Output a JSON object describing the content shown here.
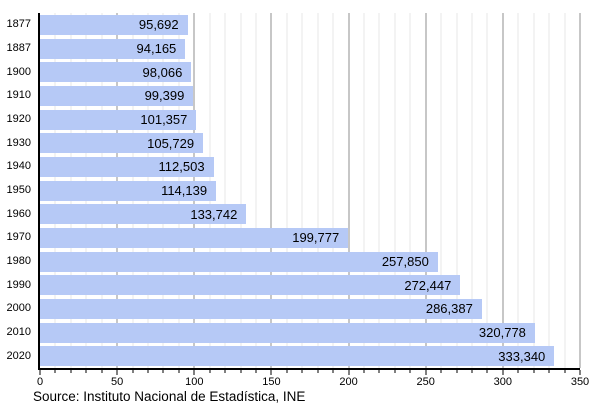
{
  "chart_data": {
    "type": "bar",
    "orientation": "horizontal",
    "categories": [
      "1877",
      "1887",
      "1900",
      "1910",
      "1920",
      "1930",
      "1940",
      "1950",
      "1960",
      "1970",
      "1980",
      "1990",
      "2000",
      "2010",
      "2020"
    ],
    "values": [
      95692,
      94165,
      98066,
      99399,
      101357,
      105729,
      112503,
      114139,
      133742,
      199777,
      257850,
      272447,
      286387,
      320778,
      333340
    ],
    "value_labels": [
      "95,692",
      "94,165",
      "98,066",
      "99,399",
      "101,357",
      "105,729",
      "112,503",
      "114,139",
      "133,742",
      "199,777",
      "257,850",
      "272,447",
      "286,387",
      "320,778",
      "333,340"
    ],
    "title": "",
    "xlabel": "",
    "ylabel": "",
    "x_tick_labels": [
      "0",
      "50",
      "100",
      "150",
      "200",
      "250",
      "300",
      "350"
    ],
    "x_ticks": [
      0,
      50,
      100,
      150,
      200,
      250,
      300,
      350
    ],
    "xlim": [
      0,
      350
    ],
    "x_axis_units": "thousands",
    "minor_step": 10,
    "major_step": 50,
    "grid": "vertical, minor every 10 / major every 50",
    "legend": "none",
    "source": "Source: Instituto Nacional de Estadística, INE",
    "colors": {
      "bar_fill": "#b6c9f6",
      "minor_gridline": "#e7e7e7",
      "major_gridline": "#8f8f8f",
      "axis_line": "#000000",
      "text": "#000000",
      "background": "#ffffff"
    }
  }
}
